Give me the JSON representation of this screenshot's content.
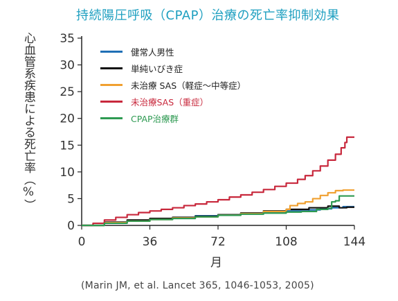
{
  "chart_data": {
    "type": "line",
    "title": "持続陽圧呼吸（CPAP）治療の死亡率抑制効果",
    "xlabel": "月",
    "ylabel": "心血管系疾患による死亡率（%）",
    "x_ticks": [
      0,
      36,
      72,
      108,
      144
    ],
    "y_ticks": [
      0,
      5,
      10,
      15,
      20,
      25,
      30,
      35
    ],
    "xlim": [
      0,
      144
    ],
    "ylim": [
      0,
      35
    ],
    "grid": false,
    "legend_position": "top-left",
    "series": [
      {
        "name": "健常人男性",
        "color": "#1f6fb5",
        "points": [
          [
            0,
            0
          ],
          [
            12,
            0.5
          ],
          [
            24,
            0.9
          ],
          [
            36,
            1.2
          ],
          [
            48,
            1.5
          ],
          [
            60,
            1.8
          ],
          [
            72,
            2.0
          ],
          [
            84,
            2.3
          ],
          [
            96,
            2.5
          ],
          [
            108,
            2.7
          ],
          [
            120,
            2.9
          ],
          [
            126,
            3.1
          ],
          [
            132,
            3.3
          ],
          [
            138,
            3.5
          ],
          [
            144,
            3.5
          ]
        ]
      },
      {
        "name": "単純いびき症",
        "color": "#111111",
        "points": [
          [
            0,
            0
          ],
          [
            12,
            0.6
          ],
          [
            24,
            1.0
          ],
          [
            36,
            1.3
          ],
          [
            48,
            1.5
          ],
          [
            60,
            1.7
          ],
          [
            72,
            2.0
          ],
          [
            84,
            2.3
          ],
          [
            96,
            2.7
          ],
          [
            108,
            3.0
          ],
          [
            120,
            3.3
          ],
          [
            130,
            3.6
          ],
          [
            136,
            3.3
          ],
          [
            140,
            3.4
          ],
          [
            144,
            3.4
          ]
        ]
      },
      {
        "name": "未治療 SAS（軽症〜中等症）",
        "color": "#f0a030",
        "points": [
          [
            0,
            0
          ],
          [
            12,
            0.5
          ],
          [
            24,
            0.8
          ],
          [
            36,
            1.1
          ],
          [
            48,
            1.4
          ],
          [
            60,
            1.6
          ],
          [
            72,
            1.9
          ],
          [
            84,
            2.2
          ],
          [
            96,
            2.6
          ],
          [
            108,
            3.0
          ],
          [
            110,
            3.7
          ],
          [
            114,
            4.1
          ],
          [
            118,
            4.4
          ],
          [
            122,
            5.0
          ],
          [
            126,
            5.6
          ],
          [
            130,
            6.1
          ],
          [
            134,
            6.5
          ],
          [
            138,
            6.6
          ],
          [
            144,
            6.6
          ]
        ]
      },
      {
        "name": "未治療SAS（重症）",
        "color": "#c8283c",
        "points": [
          [
            0,
            0
          ],
          [
            6,
            0.4
          ],
          [
            12,
            1.0
          ],
          [
            18,
            1.5
          ],
          [
            24,
            2.0
          ],
          [
            30,
            2.4
          ],
          [
            36,
            2.7
          ],
          [
            42,
            3.0
          ],
          [
            48,
            3.3
          ],
          [
            54,
            3.7
          ],
          [
            60,
            4.0
          ],
          [
            66,
            4.4
          ],
          [
            72,
            4.8
          ],
          [
            78,
            5.3
          ],
          [
            84,
            5.7
          ],
          [
            90,
            6.2
          ],
          [
            96,
            6.7
          ],
          [
            102,
            7.3
          ],
          [
            108,
            7.9
          ],
          [
            114,
            8.6
          ],
          [
            118,
            9.3
          ],
          [
            122,
            10.2
          ],
          [
            126,
            11.1
          ],
          [
            130,
            12.2
          ],
          [
            134,
            13.3
          ],
          [
            137,
            14.5
          ],
          [
            139,
            15.5
          ],
          [
            140,
            16.5
          ],
          [
            144,
            16.5
          ]
        ]
      },
      {
        "name": "CPAP治療群",
        "color": "#2e9a52",
        "points": [
          [
            0,
            0
          ],
          [
            12,
            0.4
          ],
          [
            24,
            0.8
          ],
          [
            36,
            1.1
          ],
          [
            48,
            1.3
          ],
          [
            60,
            1.6
          ],
          [
            72,
            1.9
          ],
          [
            84,
            2.1
          ],
          [
            96,
            2.3
          ],
          [
            108,
            2.5
          ],
          [
            116,
            2.6
          ],
          [
            124,
            3.0
          ],
          [
            130,
            3.2
          ],
          [
            132,
            4.4
          ],
          [
            134,
            4.6
          ],
          [
            136,
            5.5
          ],
          [
            144,
            5.5
          ]
        ]
      }
    ]
  },
  "source": "(Marin JM, et al. Lancet 365, 1046-1053, 2005)"
}
